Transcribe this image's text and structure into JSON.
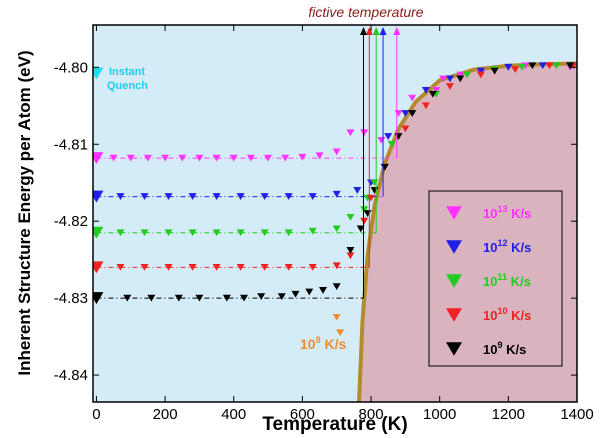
{
  "chart_data": {
    "type": "scatter",
    "title": "fictive temperature",
    "xlabel": "Temperature (K)",
    "ylabel": "Inherent Structure Energy per Atom (eV)",
    "xlim": [
      -10,
      1400
    ],
    "ylim": [
      -4.8435,
      -4.7945
    ],
    "x_ticks": [
      "0",
      "200",
      "400",
      "600",
      "800",
      "1000",
      "1200",
      "1400"
    ],
    "y_ticks": [
      "-4.80",
      "-4.81",
      "-4.82",
      "-4.83",
      "-4.84"
    ],
    "x_tick_values": [
      0,
      200,
      400,
      600,
      800,
      1000,
      1200,
      1400
    ],
    "y_tick_values": [
      -4.8,
      -4.81,
      -4.82,
      -4.83,
      -4.84
    ],
    "colors": {
      "plot_bg": "#d4ecf7",
      "liquid_region": "#d9b3bd",
      "equilibrium_curve": "#b48a2e",
      "r13": "#ff33ff",
      "r12": "#1f1fe8",
      "r11": "#22cc22",
      "r10": "#ee2222",
      "r9": "#000000",
      "r8": "#f08c30",
      "instant": "#22ddee"
    },
    "instant_quench": {
      "label_line1": "Instant",
      "label_line2": "Quench",
      "x": 0,
      "y": -4.8008
    },
    "rate8": {
      "label_base": "10",
      "label_exp": "8",
      "label_unit": " K/s",
      "points": [
        [
          710,
          -4.8345
        ],
        [
          700,
          -4.8325
        ]
      ]
    },
    "equilibrium_curve": [
      [
        765,
        -4.8435
      ],
      [
        775,
        -4.833
      ],
      [
        790,
        -4.8245
      ],
      [
        810,
        -4.818
      ],
      [
        840,
        -4.8125
      ],
      [
        880,
        -4.808
      ],
      [
        930,
        -4.8045
      ],
      [
        1000,
        -4.8017
      ],
      [
        1100,
        -4.8003
      ],
      [
        1200,
        -4.7998
      ],
      [
        1300,
        -4.7996
      ],
      [
        1400,
        -4.7995
      ]
    ],
    "legend": [
      {
        "base": "10",
        "exp": "13",
        "unit": " K/s",
        "color_key": "r13"
      },
      {
        "base": "10",
        "exp": "12",
        "unit": " K/s",
        "color_key": "r12"
      },
      {
        "base": "10",
        "exp": "11",
        "unit": " K/s",
        "color_key": "r11"
      },
      {
        "base": "10",
        "exp": "10",
        "unit": " K/s",
        "color_key": "r10"
      },
      {
        "base": "10",
        "exp": "9",
        "unit": "  K/s",
        "color_key": "r9"
      }
    ],
    "series": [
      {
        "name": "10^13 K/s",
        "color_key": "r13",
        "plateau": -4.8118,
        "fictive_T": 875,
        "points": [
          [
            0,
            -4.8118
          ],
          [
            50,
            -4.8118
          ],
          [
            100,
            -4.8118
          ],
          [
            150,
            -4.8118
          ],
          [
            200,
            -4.8118
          ],
          [
            250,
            -4.8118
          ],
          [
            300,
            -4.8118
          ],
          [
            350,
            -4.8118
          ],
          [
            400,
            -4.8118
          ],
          [
            450,
            -4.8118
          ],
          [
            500,
            -4.8118
          ],
          [
            550,
            -4.8118
          ],
          [
            600,
            -4.8117
          ],
          [
            650,
            -4.8115
          ],
          [
            700,
            -4.811
          ],
          [
            740,
            -4.8085
          ],
          [
            780,
            -4.8085
          ],
          [
            830,
            -4.8095
          ],
          [
            880,
            -4.806
          ],
          [
            920,
            -4.804
          ],
          [
            990,
            -4.803
          ],
          [
            1010,
            -4.8015
          ],
          [
            1060,
            -4.801
          ],
          [
            1120,
            -4.8008
          ],
          [
            1200,
            -4.8
          ],
          [
            1250,
            -4.7998
          ],
          [
            1320,
            -4.7998
          ],
          [
            1380,
            -4.8
          ]
        ]
      },
      {
        "name": "10^12 K/s",
        "color_key": "r12",
        "plateau": -4.8168,
        "fictive_T": 835,
        "points": [
          [
            0,
            -4.8168
          ],
          [
            70,
            -4.8168
          ],
          [
            140,
            -4.8168
          ],
          [
            210,
            -4.8168
          ],
          [
            280,
            -4.8168
          ],
          [
            350,
            -4.8168
          ],
          [
            420,
            -4.8168
          ],
          [
            490,
            -4.8168
          ],
          [
            560,
            -4.8168
          ],
          [
            630,
            -4.8168
          ],
          [
            700,
            -4.8165
          ],
          [
            760,
            -4.816
          ],
          [
            800,
            -4.815
          ],
          [
            850,
            -4.809
          ],
          [
            900,
            -4.806
          ],
          [
            960,
            -4.803
          ],
          [
            1030,
            -4.8015
          ],
          [
            1120,
            -4.8005
          ],
          [
            1200,
            -4.8
          ],
          [
            1300,
            -4.7998
          ],
          [
            1380,
            -4.7998
          ]
        ]
      },
      {
        "name": "10^11 K/s",
        "color_key": "r11",
        "plateau": -4.8215,
        "fictive_T": 815,
        "points": [
          [
            0,
            -4.8215
          ],
          [
            70,
            -4.8215
          ],
          [
            140,
            -4.8215
          ],
          [
            210,
            -4.8215
          ],
          [
            280,
            -4.8215
          ],
          [
            350,
            -4.8215
          ],
          [
            420,
            -4.8215
          ],
          [
            490,
            -4.8215
          ],
          [
            560,
            -4.8215
          ],
          [
            630,
            -4.8213
          ],
          [
            700,
            -4.821
          ],
          [
            740,
            -4.8195
          ],
          [
            780,
            -4.8185
          ],
          [
            790,
            -4.817
          ],
          [
            810,
            -4.815
          ],
          [
            860,
            -4.81
          ],
          [
            920,
            -4.806
          ],
          [
            990,
            -4.8035
          ],
          [
            1080,
            -4.801
          ],
          [
            1160,
            -4.8003
          ],
          [
            1240,
            -4.8
          ],
          [
            1340,
            -4.7998
          ],
          [
            1390,
            -4.7998
          ]
        ]
      },
      {
        "name": "10^10 K/s",
        "color_key": "r10",
        "plateau": -4.826,
        "fictive_T": 795,
        "points": [
          [
            0,
            -4.826
          ],
          [
            70,
            -4.826
          ],
          [
            140,
            -4.826
          ],
          [
            210,
            -4.826
          ],
          [
            280,
            -4.826
          ],
          [
            350,
            -4.826
          ],
          [
            420,
            -4.826
          ],
          [
            490,
            -4.826
          ],
          [
            560,
            -4.826
          ],
          [
            630,
            -4.826
          ],
          [
            700,
            -4.8258
          ],
          [
            740,
            -4.8245
          ],
          [
            780,
            -4.82
          ],
          [
            800,
            -4.817
          ],
          [
            840,
            -4.813
          ],
          [
            900,
            -4.808
          ],
          [
            960,
            -4.805
          ],
          [
            1030,
            -4.8025
          ],
          [
            1120,
            -4.801
          ],
          [
            1220,
            -4.8003
          ],
          [
            1320,
            -4.7998
          ],
          [
            1390,
            -4.7998
          ]
        ]
      },
      {
        "name": "10^9 K/s",
        "color_key": "r9",
        "plateau": -4.83,
        "fictive_T": 778,
        "points": [
          [
            0,
            -4.83
          ],
          [
            90,
            -4.83
          ],
          [
            160,
            -4.83
          ],
          [
            240,
            -4.83
          ],
          [
            300,
            -4.83
          ],
          [
            380,
            -4.83
          ],
          [
            430,
            -4.83
          ],
          [
            480,
            -4.8298
          ],
          [
            540,
            -4.8298
          ],
          [
            580,
            -4.8295
          ],
          [
            620,
            -4.8292
          ],
          [
            660,
            -4.829
          ],
          [
            700,
            -4.8285
          ],
          [
            740,
            -4.8238
          ],
          [
            770,
            -4.821
          ],
          [
            790,
            -4.819
          ],
          [
            810,
            -4.816
          ],
          [
            840,
            -4.813
          ],
          [
            880,
            -4.809
          ],
          [
            920,
            -4.806
          ],
          [
            980,
            -4.8035
          ],
          [
            1060,
            -4.8015
          ],
          [
            1160,
            -4.8005
          ],
          [
            1270,
            -4.7998
          ],
          [
            1380,
            -4.7998
          ]
        ]
      }
    ]
  }
}
